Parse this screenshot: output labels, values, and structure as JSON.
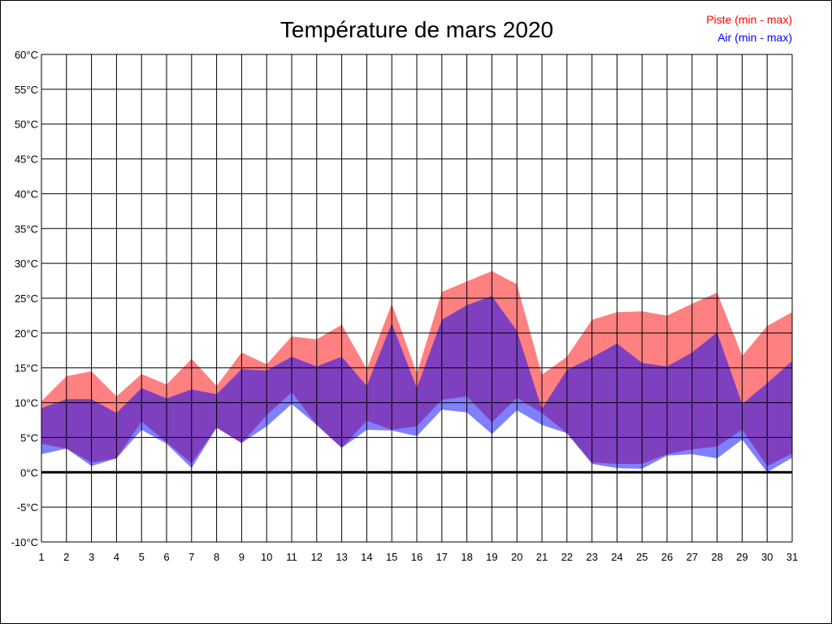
{
  "chart_data": {
    "type": "area",
    "title": "Température de mars 2020",
    "x": [
      1,
      2,
      3,
      4,
      5,
      6,
      7,
      8,
      9,
      10,
      11,
      12,
      13,
      14,
      15,
      16,
      17,
      18,
      19,
      20,
      21,
      22,
      23,
      24,
      25,
      26,
      27,
      28,
      29,
      30,
      31
    ],
    "ylim": [
      -10,
      60
    ],
    "yticks": [
      -10,
      -5,
      0,
      5,
      10,
      15,
      20,
      25,
      30,
      35,
      40,
      45,
      50,
      55,
      60
    ],
    "ytick_suffix": "°C",
    "grid": true,
    "legend_position": "top-right",
    "series": [
      {
        "name": "Piste (min - max)",
        "color": "#ff0000",
        "fill": "#ff8080",
        "min": [
          4.1,
          3.4,
          1.4,
          2.0,
          7.3,
          4.3,
          1.3,
          6.4,
          4.2,
          8.2,
          11.5,
          6.8,
          3.5,
          7.4,
          6.1,
          6.6,
          10.4,
          10.9,
          7.2,
          10.7,
          8.5,
          5.6,
          1.4,
          1.2,
          1.2,
          2.6,
          3.3,
          3.7,
          6.1,
          0.9,
          2.7
        ],
        "max": [
          10.2,
          13.8,
          14.5,
          10.9,
          14.1,
          12.6,
          16.3,
          12.4,
          17.2,
          15.5,
          19.5,
          19.1,
          21.2,
          14.8,
          24.2,
          14.2,
          25.9,
          27.4,
          28.9,
          27.0,
          14.0,
          16.6,
          21.9,
          23.0,
          23.1,
          22.5,
          24.2,
          25.8,
          16.7,
          21.0,
          23.0
        ]
      },
      {
        "name": "Air (min - max)",
        "color": "#0000ff",
        "fill": "#8080ff",
        "min": [
          2.6,
          3.4,
          0.9,
          2.0,
          6.1,
          4.1,
          0.6,
          6.4,
          4.2,
          6.6,
          9.8,
          6.8,
          3.5,
          6.1,
          6.0,
          5.2,
          9.0,
          8.6,
          5.5,
          8.9,
          6.8,
          5.6,
          1.2,
          0.6,
          0.5,
          2.4,
          2.6,
          2.0,
          4.7,
          0.0,
          2.1
        ],
        "max": [
          9.2,
          10.5,
          10.5,
          8.5,
          12.1,
          10.6,
          11.9,
          11.2,
          14.8,
          14.6,
          16.6,
          15.2,
          16.6,
          12.4,
          21.4,
          12.1,
          21.9,
          24.0,
          25.3,
          20.3,
          9.1,
          14.7,
          16.5,
          18.5,
          15.7,
          15.2,
          17.2,
          20.1,
          9.8,
          12.8,
          16.0
        ]
      }
    ]
  }
}
